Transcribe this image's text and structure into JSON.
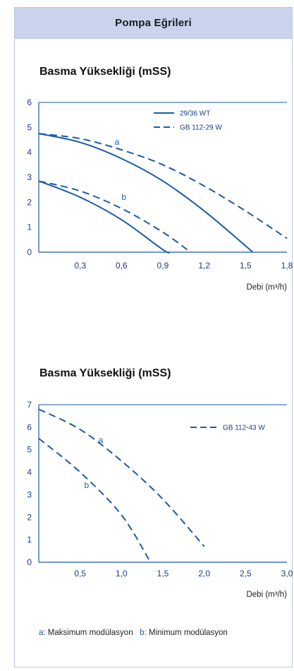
{
  "header": {
    "title": "Pompa Eğrileri"
  },
  "colors": {
    "curve": "#1c5aa6",
    "axis": "#1c5aa6",
    "header_bg": "#c9d3ee",
    "tick": "#1a3a8c"
  },
  "chart_data": [
    {
      "type": "line",
      "title": "Basma Yüksekliği (mSS)",
      "xlabel": "Debi (m³/h)",
      "xlim": [
        0,
        1.8
      ],
      "ylim": [
        0,
        6
      ],
      "x_ticks": [
        "0,3",
        "0,6",
        "0,9",
        "1,2",
        "1,5",
        "1,8"
      ],
      "x_tick_values": [
        0.3,
        0.6,
        0.9,
        1.2,
        1.5,
        1.8
      ],
      "y_ticks": [
        "0",
        "1",
        "2",
        "3",
        "4",
        "5",
        "6"
      ],
      "y_tick_values": [
        0,
        1,
        2,
        3,
        4,
        5,
        6
      ],
      "legend": [
        {
          "label": "29/36 WT",
          "style": "solid"
        },
        {
          "label": "GB 112-29 W",
          "style": "dashed"
        }
      ],
      "series": [
        {
          "name": "29/36 WT",
          "style": "solid",
          "curve_label": "a",
          "x": [
            0,
            0.3,
            0.6,
            0.9,
            1.2,
            1.5,
            1.55
          ],
          "y": [
            4.75,
            4.4,
            3.75,
            2.85,
            1.65,
            0.25,
            0
          ]
        },
        {
          "name": "GB 112-29 W",
          "style": "dashed",
          "curve_label": "a",
          "x": [
            0,
            0.3,
            0.6,
            0.9,
            1.2,
            1.5,
            1.8
          ],
          "y": [
            4.75,
            4.55,
            4.1,
            3.5,
            2.65,
            1.65,
            0.55
          ]
        },
        {
          "name": "29/36 WT",
          "style": "solid",
          "curve_label": "b",
          "x": [
            0,
            0.3,
            0.6,
            0.9,
            0.95
          ],
          "y": [
            2.85,
            2.2,
            1.3,
            0.1,
            0
          ]
        },
        {
          "name": "GB 112-29 W",
          "style": "dashed",
          "curve_label": "b",
          "x": [
            0,
            0.3,
            0.6,
            0.9,
            1.1
          ],
          "y": [
            2.85,
            2.45,
            1.75,
            0.8,
            0
          ]
        }
      ],
      "curve_labels": [
        {
          "text": "a",
          "x": 0.55,
          "y": 4.3
        },
        {
          "text": "b",
          "x": 0.6,
          "y": 2.1
        }
      ]
    },
    {
      "type": "line",
      "title": "Basma Yüksekliği (mSS)",
      "xlabel": "Debi (m³/h)",
      "xlim": [
        0,
        3.0
      ],
      "ylim": [
        0,
        7
      ],
      "x_ticks": [
        "0,5",
        "1,0",
        "1,5",
        "2,0",
        "2,5",
        "3,0"
      ],
      "x_tick_values": [
        0.5,
        1.0,
        1.5,
        2.0,
        2.5,
        3.0
      ],
      "y_ticks": [
        "0",
        "1",
        "2",
        "3",
        "4",
        "5",
        "6",
        "7"
      ],
      "y_tick_values": [
        0,
        1,
        2,
        3,
        4,
        5,
        6,
        7
      ],
      "legend": [
        {
          "label": "GB 112-43 W",
          "style": "dashed"
        }
      ],
      "series": [
        {
          "name": "GB 112-43 W",
          "style": "dashed",
          "curve_label": "a",
          "x": [
            0,
            0.5,
            1.0,
            1.5,
            2.0
          ],
          "y": [
            6.8,
            5.9,
            4.5,
            2.8,
            0.7
          ]
        },
        {
          "name": "GB 112-43 W",
          "style": "dashed",
          "curve_label": "b",
          "x": [
            0,
            0.5,
            1.0,
            1.35
          ],
          "y": [
            5.5,
            4.0,
            2.1,
            0
          ]
        }
      ],
      "curve_labels": [
        {
          "text": "a",
          "x": 0.72,
          "y": 5.3
        },
        {
          "text": "b",
          "x": 0.55,
          "y": 3.3
        }
      ]
    }
  ],
  "footnote": {
    "a_key": "a:",
    "a_text": "Maksimum modülasyon",
    "b_key": "b:",
    "b_text": "Minimum modülasyon"
  }
}
